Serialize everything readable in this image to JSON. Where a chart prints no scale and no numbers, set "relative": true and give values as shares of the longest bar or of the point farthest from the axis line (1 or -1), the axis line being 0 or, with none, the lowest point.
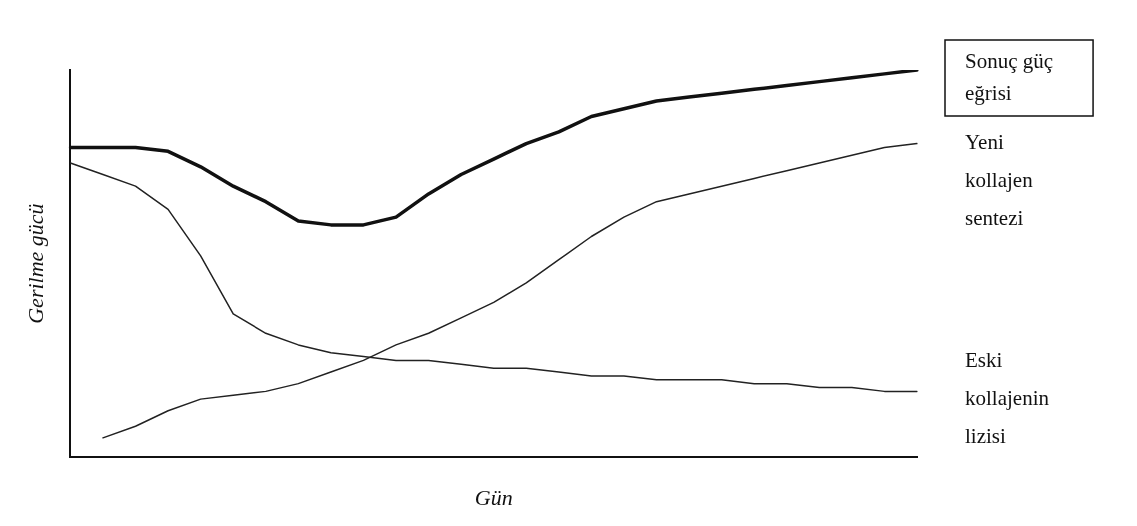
{
  "chart_data": {
    "type": "line",
    "relative": true,
    "ylabel": "Gerilme gücü",
    "xlabel": "Gün",
    "legend": false,
    "grid": false,
    "marker": "none",
    "line_style": "solid",
    "categories": [
      null,
      null,
      null,
      null,
      null,
      null,
      null,
      null,
      null,
      null,
      null,
      null,
      null,
      null,
      null,
      null,
      null,
      null,
      null,
      null,
      null,
      null,
      null,
      null,
      null,
      null,
      null
    ],
    "series": [
      {
        "name": "Sonuç güç eğrisi",
        "color": "#111111",
        "values": [
          0.8,
          0.8,
          0.8,
          0.79,
          0.75,
          0.7,
          0.66,
          0.61,
          0.6,
          0.6,
          0.62,
          0.68,
          0.73,
          0.77,
          0.81,
          0.84,
          0.88,
          0.9,
          0.92,
          0.93,
          0.94,
          0.95,
          0.96,
          0.97,
          0.98,
          0.99,
          1
        ]
      },
      {
        "name": "Yeni kollajen sentezi",
        "color": "#222222",
        "values": [
          null,
          0.05,
          0.08,
          0.12,
          0.15,
          0.16,
          0.17,
          0.19,
          0.22,
          0.25,
          0.29,
          0.32,
          0.36,
          0.4,
          0.45,
          0.51,
          0.57,
          0.62,
          0.66,
          0.68,
          0.7,
          0.72,
          0.74,
          0.76,
          0.78,
          0.8,
          0.81
        ]
      },
      {
        "name": "Eski kollajenin lizisi",
        "color": "#222222",
        "values": [
          0.76,
          0.73,
          0.7,
          0.64,
          0.52,
          0.37,
          0.32,
          0.29,
          0.27,
          0.26,
          0.25,
          0.25,
          0.24,
          0.23,
          0.23,
          0.22,
          0.21,
          0.21,
          0.2,
          0.2,
          0.2,
          0.19,
          0.19,
          0.18,
          0.18,
          0.17,
          0.17
        ]
      }
    ]
  }
}
